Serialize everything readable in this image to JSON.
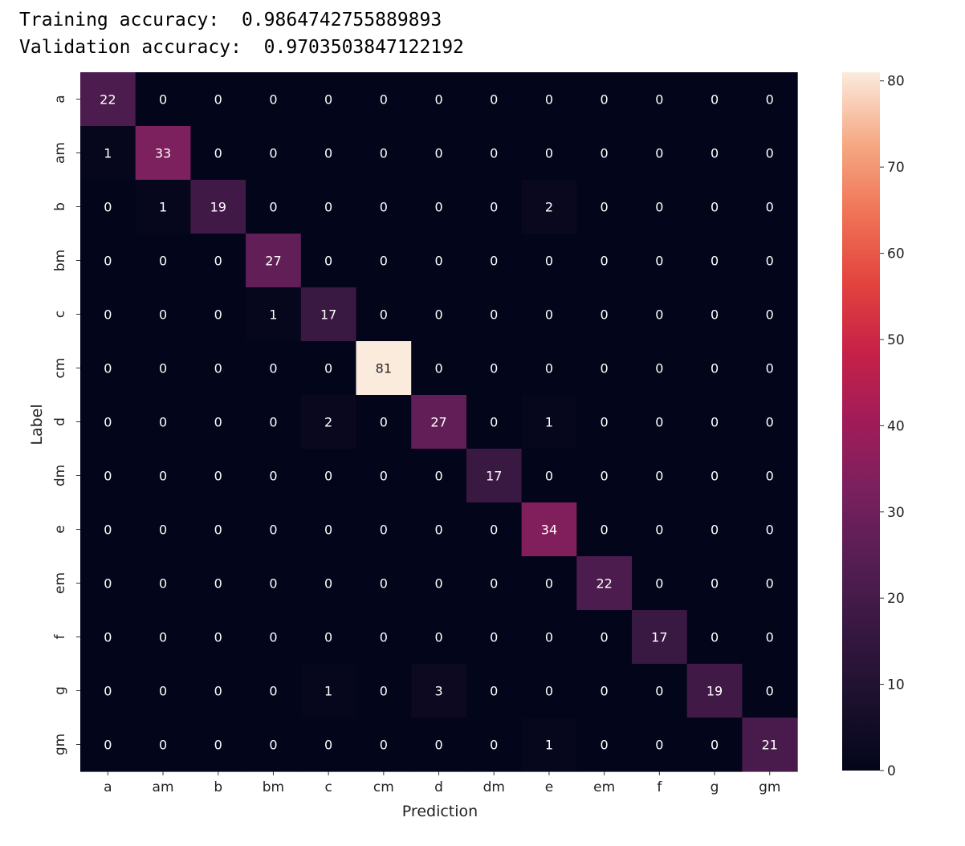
{
  "console": {
    "training_label": "Training accuracy:",
    "training_value": "0.9864742755889893",
    "validation_label": "Validation accuracy:",
    "validation_value": "0.9703503847122192"
  },
  "chart_data": {
    "type": "heatmap",
    "title": "",
    "xlabel": "Prediction",
    "ylabel": "Label",
    "x_categories": [
      "a",
      "am",
      "b",
      "bm",
      "c",
      "cm",
      "d",
      "dm",
      "e",
      "em",
      "f",
      "g",
      "gm"
    ],
    "y_categories": [
      "a",
      "am",
      "b",
      "bm",
      "c",
      "cm",
      "d",
      "dm",
      "e",
      "em",
      "f",
      "g",
      "gm"
    ],
    "values": [
      [
        22,
        0,
        0,
        0,
        0,
        0,
        0,
        0,
        0,
        0,
        0,
        0,
        0
      ],
      [
        1,
        33,
        0,
        0,
        0,
        0,
        0,
        0,
        0,
        0,
        0,
        0,
        0
      ],
      [
        0,
        1,
        19,
        0,
        0,
        0,
        0,
        0,
        2,
        0,
        0,
        0,
        0
      ],
      [
        0,
        0,
        0,
        27,
        0,
        0,
        0,
        0,
        0,
        0,
        0,
        0,
        0
      ],
      [
        0,
        0,
        0,
        1,
        17,
        0,
        0,
        0,
        0,
        0,
        0,
        0,
        0
      ],
      [
        0,
        0,
        0,
        0,
        0,
        81,
        0,
        0,
        0,
        0,
        0,
        0,
        0
      ],
      [
        0,
        0,
        0,
        0,
        2,
        0,
        27,
        0,
        1,
        0,
        0,
        0,
        0
      ],
      [
        0,
        0,
        0,
        0,
        0,
        0,
        0,
        17,
        0,
        0,
        0,
        0,
        0
      ],
      [
        0,
        0,
        0,
        0,
        0,
        0,
        0,
        0,
        34,
        0,
        0,
        0,
        0
      ],
      [
        0,
        0,
        0,
        0,
        0,
        0,
        0,
        0,
        0,
        22,
        0,
        0,
        0
      ],
      [
        0,
        0,
        0,
        0,
        0,
        0,
        0,
        0,
        0,
        0,
        17,
        0,
        0
      ],
      [
        0,
        0,
        0,
        0,
        1,
        0,
        3,
        0,
        0,
        0,
        0,
        19,
        0
      ],
      [
        0,
        0,
        0,
        0,
        0,
        0,
        0,
        0,
        1,
        0,
        0,
        0,
        21
      ]
    ],
    "colorbar": {
      "min": 0,
      "max": 81,
      "ticks": [
        0,
        10,
        20,
        30,
        40,
        50,
        60,
        70,
        80
      ]
    },
    "colormap": "rocket",
    "annotated": true,
    "grid": false
  }
}
